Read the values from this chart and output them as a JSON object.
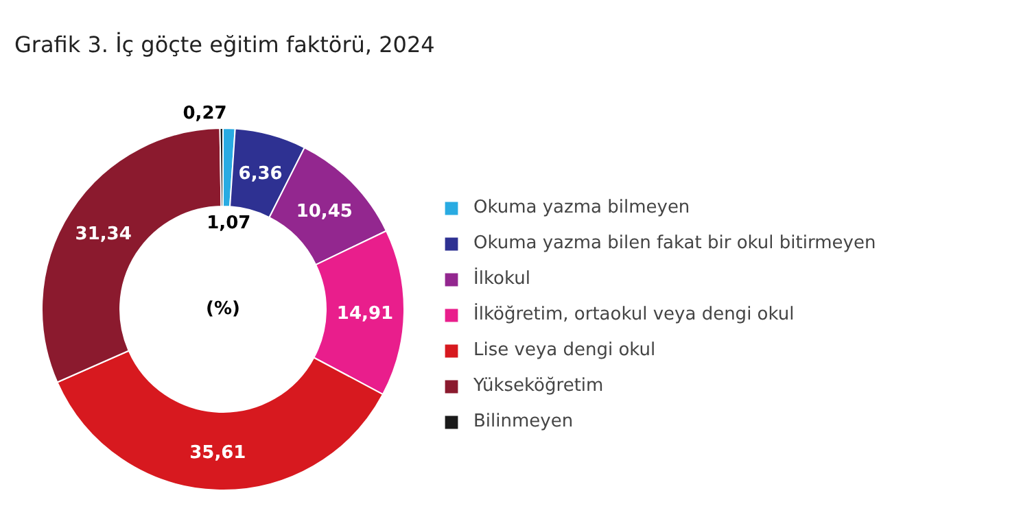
{
  "chart_data": {
    "type": "donut",
    "title": "Grafik 3. İç göçte eğitim faktörü, 2024",
    "categories": [
      "Okuma yazma bilmeyen",
      "Okuma yazma bilen fakat bir okul bitirmeyen",
      "İlkokul",
      "İlköğretim, ortaokul veya dengi okul",
      "Lise veya dengi okul",
      "Yükseköğretim",
      "Bilinmeyen"
    ],
    "values": [
      1.07,
      6.36,
      10.45,
      14.91,
      35.61,
      31.34,
      0.27
    ],
    "colors": [
      "#29abe2",
      "#2e3192",
      "#93278f",
      "#e91e8c",
      "#d7191f",
      "#8b1a2e",
      "#1a1a1a"
    ],
    "value_labels": [
      "1,07",
      "6,36",
      "10,45",
      "14,91",
      "35,61",
      "31,34",
      "0,27"
    ],
    "annotations": [
      "(%)"
    ],
    "legend": "right"
  }
}
